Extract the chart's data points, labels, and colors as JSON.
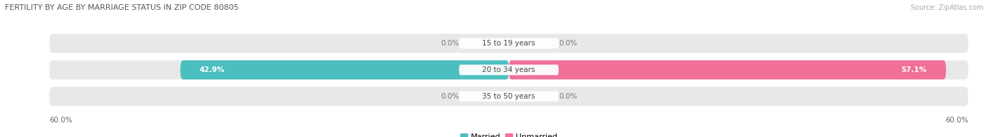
{
  "title": "FERTILITY BY AGE BY MARRIAGE STATUS IN ZIP CODE 80805",
  "source": "Source: ZipAtlas.com",
  "background_color": "#ffffff",
  "bar_bg_color": "#e8e8e8",
  "married_color": "#4bbfbf",
  "unmarried_color": "#f07098",
  "rows": [
    {
      "label": "15 to 19 years",
      "married": 0.0,
      "unmarried": 0.0
    },
    {
      "label": "20 to 34 years",
      "married": 42.9,
      "unmarried": 57.1
    },
    {
      "label": "35 to 50 years",
      "married": 0.0,
      "unmarried": 0.0
    }
  ],
  "axis_max": 60.0,
  "axis_label_left": "60.0%",
  "axis_label_right": "60.0%",
  "figsize": [
    14.06,
    1.96
  ],
  "dpi": 100
}
